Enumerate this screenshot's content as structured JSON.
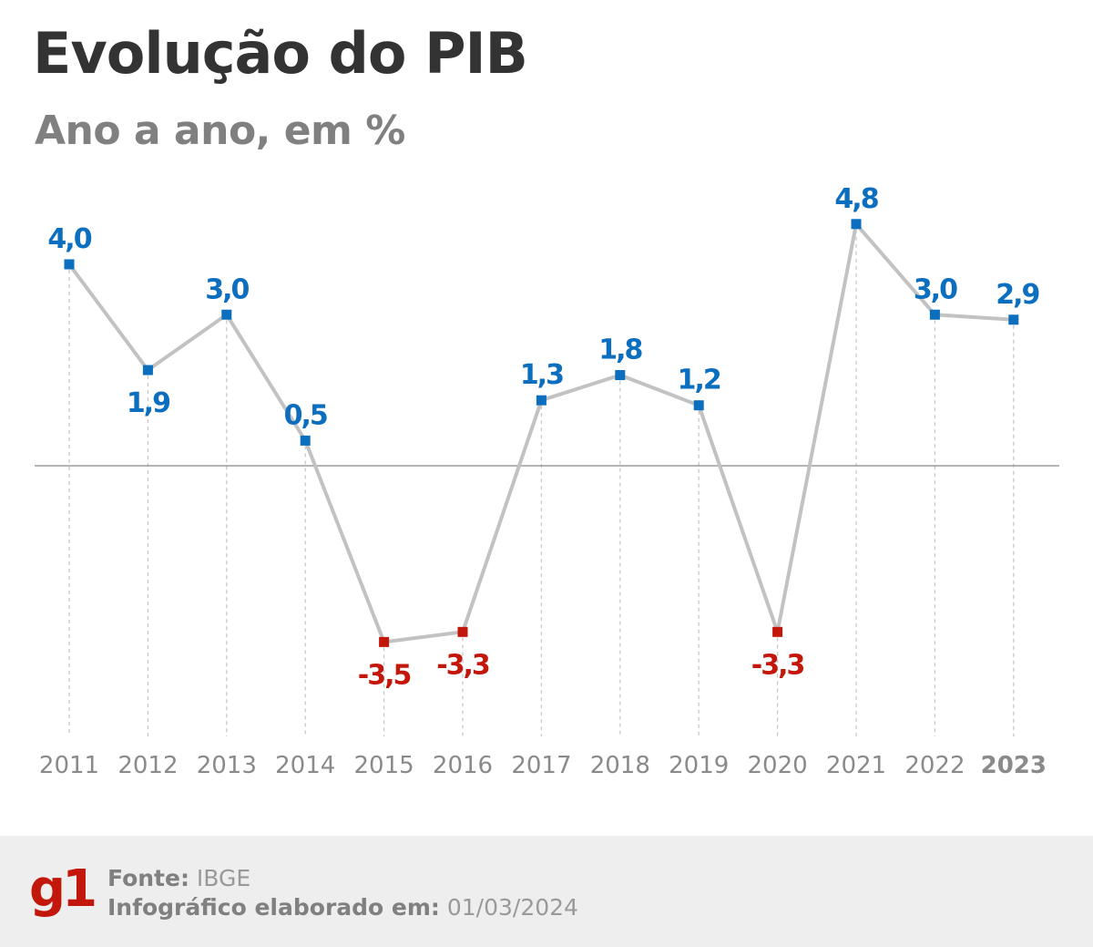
{
  "chart_data": {
    "type": "line",
    "title": "Evolução do PIB",
    "subtitle": "Ano a ano, em %",
    "categories": [
      "2011",
      "2012",
      "2013",
      "2014",
      "2015",
      "2016",
      "2017",
      "2018",
      "2019",
      "2020",
      "2021",
      "2022",
      "2023"
    ],
    "values": [
      4.0,
      1.9,
      3.0,
      0.5,
      -3.5,
      -3.3,
      1.3,
      1.8,
      1.2,
      -3.3,
      4.8,
      3.0,
      2.9
    ],
    "data_labels": [
      "4,0",
      "1,9",
      "3,0",
      "0,5",
      "-3,5",
      "-3,3",
      "1,3",
      "1,8",
      "1,2",
      "-3,3",
      "4,8",
      "3,0",
      "2,9"
    ],
    "highlighted_category": "2023",
    "ylim": [
      -5.4,
      5.3
    ],
    "grid": false,
    "colors": {
      "line": "#c2c2c2",
      "positive": "#0b6ebf",
      "negative": "#c4170c",
      "zero_line": "#888888",
      "axis_text": "#8a8a8a"
    }
  },
  "footer": {
    "logo": "g1",
    "source_label": "Fonte:",
    "source_value": "IBGE",
    "date_label": "Infográfico elaborado em:",
    "date_value": "01/03/2024"
  }
}
